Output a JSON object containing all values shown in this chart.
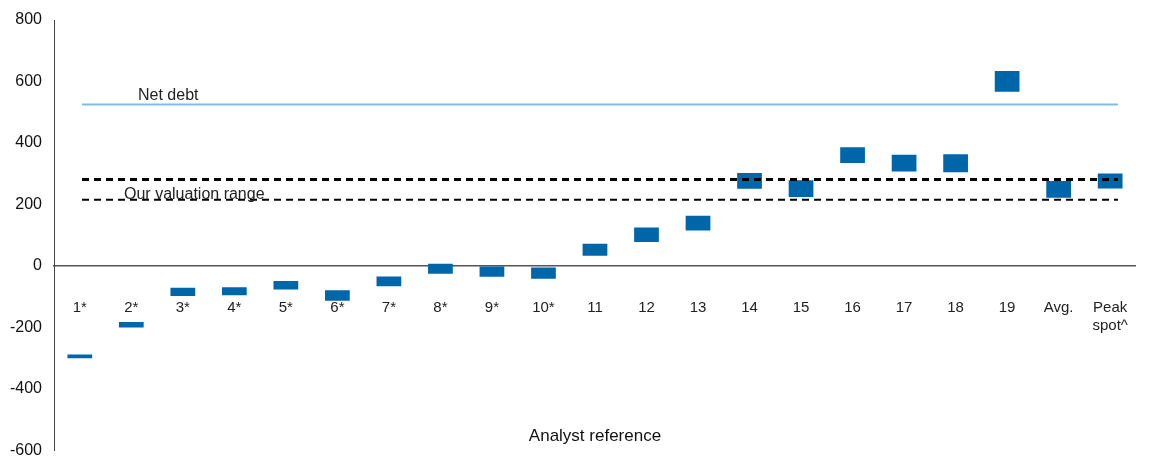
{
  "chart_data": {
    "type": "bar",
    "xlabel": "Analyst reference",
    "categories": [
      "1*",
      "2*",
      "3*",
      "4*",
      "5*",
      "6*",
      "7*",
      "8*",
      "9*",
      "10*",
      "11",
      "12",
      "13",
      "14",
      "15",
      "16",
      "17",
      "18",
      "19",
      "Avg.",
      "Peak spot^"
    ],
    "base": [
      -300,
      -200,
      -98,
      -95,
      -77,
      -113,
      -66,
      -25,
      -35,
      -42,
      33,
      78,
      115,
      251,
      224,
      335,
      307,
      305,
      567,
      222,
      252
    ],
    "values": [
      12,
      18,
      27,
      26,
      28,
      34,
      32,
      32,
      33,
      37,
      39,
      47,
      48,
      51,
      55,
      51,
      55,
      58,
      67,
      54,
      49
    ],
    "color": "#0066aa",
    "ylim": [
      -600,
      800
    ],
    "yticks": [
      -600,
      -400,
      -200,
      0,
      200,
      400,
      600,
      800
    ],
    "grid": false,
    "legend": false,
    "ref_lines": [
      {
        "axis": "y",
        "value": 525,
        "label": "Net debt",
        "color": "#7dbde8",
        "line_style": "solid"
      },
      {
        "axis": "y",
        "value": 281,
        "label": null,
        "color": "#000000",
        "line_style": "dashed"
      },
      {
        "axis": "y",
        "value": 215,
        "label": "Our valuation range",
        "color": "#000000",
        "line_style": "dashed"
      }
    ]
  }
}
